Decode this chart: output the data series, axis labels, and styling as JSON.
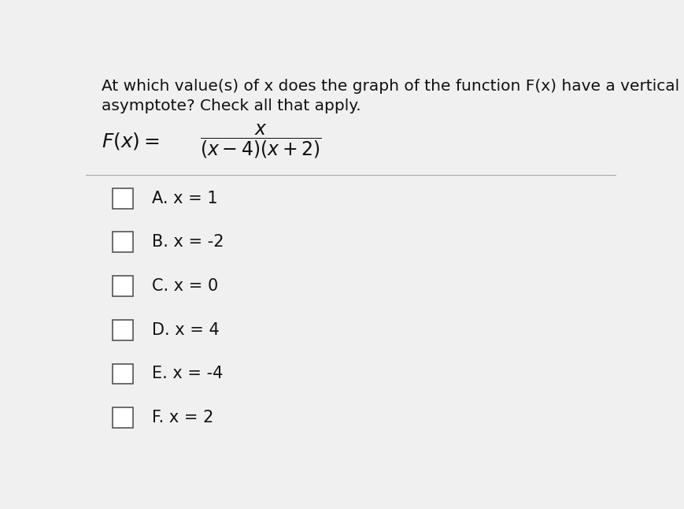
{
  "background_color": "#f0f0f0",
  "title_line1": "At which value(s) of x does the graph of the function F(x) have a vertical",
  "title_line2": "asymptote? Check all that apply.",
  "options": [
    {
      "label": "A.",
      "text": " x = 1"
    },
    {
      "label": "B.",
      "text": " x = -2"
    },
    {
      "label": "C.",
      "text": " x = 0"
    },
    {
      "label": "D.",
      "text": " x = 4"
    },
    {
      "label": "E.",
      "text": " x = -4"
    },
    {
      "label": "F.",
      "text": " x = 2"
    }
  ],
  "checkbox_color": "#ffffff",
  "checkbox_edge_color": "#555555",
  "text_color": "#111111",
  "divider_color": "#aaaaaa",
  "title_fontsize": 14.5,
  "option_fontsize": 15,
  "function_fontsize": 17
}
